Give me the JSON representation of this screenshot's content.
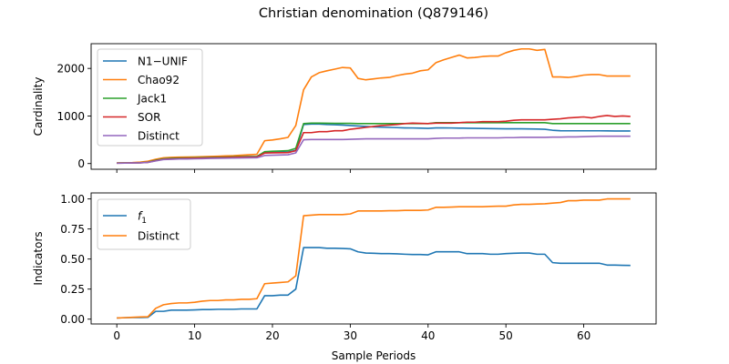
{
  "figure": {
    "title": "Christian denomination (Q879146)"
  },
  "chart_data": [
    {
      "type": "line",
      "title": "Christian denomination (Q879146)",
      "xlabel": "",
      "ylabel": "Cardinality",
      "xlim": [
        -3.3,
        69.3
      ],
      "ylim": [
        -120,
        2520
      ],
      "xticks": [
        0,
        10,
        20,
        30,
        40,
        50,
        60
      ],
      "xtick_labels": [
        "",
        "",
        "",
        "",
        "",
        "",
        ""
      ],
      "yticks": [
        0,
        1000,
        2000
      ],
      "ytick_labels": [
        "0",
        "1000",
        "2000"
      ],
      "grid": false,
      "legend_position": "upper left",
      "x": [
        0,
        1,
        2,
        3,
        4,
        5,
        6,
        7,
        8,
        9,
        10,
        11,
        12,
        13,
        14,
        15,
        16,
        17,
        18,
        19,
        20,
        21,
        22,
        23,
        24,
        25,
        26,
        27,
        28,
        29,
        30,
        31,
        32,
        33,
        34,
        35,
        36,
        37,
        38,
        39,
        40,
        41,
        42,
        43,
        44,
        45,
        46,
        47,
        48,
        49,
        50,
        51,
        52,
        53,
        54,
        55,
        56,
        57,
        58,
        59,
        60,
        61,
        62,
        63,
        64,
        65,
        66
      ],
      "series": [
        {
          "name": "N1−UNIF",
          "color": "#1f77b4",
          "values": [
            10,
            12,
            14,
            18,
            30,
            70,
            100,
            110,
            115,
            118,
            120,
            125,
            130,
            133,
            135,
            140,
            145,
            148,
            150,
            230,
            235,
            238,
            240,
            280,
            820,
            830,
            830,
            820,
            815,
            810,
            800,
            790,
            780,
            770,
            765,
            760,
            755,
            750,
            748,
            745,
            740,
            750,
            750,
            748,
            745,
            743,
            740,
            738,
            735,
            733,
            730,
            730,
            730,
            728,
            725,
            720,
            700,
            690,
            688,
            688,
            688,
            688,
            688,
            687,
            685,
            685,
            685
          ],
          "labels": []
        },
        {
          "name": "Chao92",
          "color": "#ff7f0e",
          "values": [
            15,
            17,
            20,
            30,
            50,
            90,
            120,
            130,
            135,
            138,
            140,
            145,
            150,
            155,
            160,
            165,
            175,
            185,
            195,
            480,
            495,
            520,
            550,
            800,
            1550,
            1820,
            1910,
            1950,
            1985,
            2020,
            2010,
            1790,
            1760,
            1780,
            1800,
            1810,
            1850,
            1880,
            1900,
            1950,
            1970,
            2120,
            2180,
            2230,
            2280,
            2220,
            2230,
            2250,
            2260,
            2260,
            2330,
            2380,
            2410,
            2410,
            2380,
            2400,
            1820,
            1820,
            1810,
            1830,
            1860,
            1870,
            1870,
            1840,
            1840,
            1840,
            1840
          ],
          "labels": []
        },
        {
          "name": "Jack1",
          "color": "#2ca02c",
          "values": [
            10,
            12,
            14,
            18,
            30,
            70,
            100,
            110,
            115,
            118,
            120,
            125,
            130,
            133,
            135,
            140,
            145,
            148,
            150,
            250,
            260,
            265,
            270,
            320,
            840,
            850,
            850,
            848,
            845,
            845,
            845,
            840,
            840,
            840,
            840,
            840,
            840,
            840,
            840,
            840,
            840,
            860,
            860,
            860,
            860,
            860,
            860,
            860,
            860,
            860,
            860,
            860,
            860,
            860,
            860,
            860,
            840,
            840,
            840,
            840,
            840,
            840,
            840,
            840,
            840,
            840,
            840
          ],
          "labels": []
        },
        {
          "name": "SOR",
          "color": "#d62728",
          "values": [
            8,
            10,
            12,
            15,
            25,
            60,
            90,
            100,
            105,
            108,
            110,
            115,
            120,
            123,
            125,
            130,
            135,
            138,
            140,
            220,
            225,
            228,
            230,
            270,
            650,
            650,
            670,
            670,
            690,
            690,
            720,
            740,
            760,
            780,
            800,
            810,
            820,
            840,
            850,
            845,
            840,
            850,
            850,
            850,
            860,
            870,
            870,
            880,
            880,
            880,
            890,
            910,
            920,
            920,
            920,
            920,
            930,
            940,
            960,
            970,
            980,
            960,
            990,
            1010,
            990,
            1000,
            990
          ],
          "labels": []
        },
        {
          "name": "Distinct",
          "color": "#9467bd",
          "values": [
            8,
            10,
            12,
            15,
            25,
            55,
            85,
            90,
            95,
            97,
            100,
            103,
            108,
            110,
            112,
            115,
            118,
            120,
            122,
            170,
            175,
            180,
            185,
            225,
            500,
            505,
            505,
            505,
            505,
            505,
            510,
            515,
            520,
            520,
            520,
            520,
            520,
            520,
            520,
            520,
            520,
            530,
            535,
            535,
            535,
            540,
            540,
            540,
            540,
            540,
            545,
            545,
            550,
            550,
            550,
            550,
            555,
            555,
            560,
            560,
            565,
            570,
            575,
            575,
            575,
            575,
            575
          ],
          "labels": []
        }
      ]
    },
    {
      "type": "line",
      "xlabel": "Sample Periods",
      "ylabel": "Indicators",
      "xlim": [
        -3.3,
        69.3
      ],
      "ylim": [
        -0.04,
        1.05
      ],
      "xticks": [
        0,
        10,
        20,
        30,
        40,
        50,
        60
      ],
      "xtick_labels": [
        "0",
        "10",
        "20",
        "30",
        "40",
        "50",
        "60"
      ],
      "yticks": [
        0.0,
        0.25,
        0.5,
        0.75,
        1.0
      ],
      "ytick_labels": [
        "0.00",
        "0.25",
        "0.50",
        "0.75",
        "1.00"
      ],
      "grid": false,
      "legend_position": "upper left",
      "x": [
        0,
        1,
        2,
        3,
        4,
        5,
        6,
        7,
        8,
        9,
        10,
        11,
        12,
        13,
        14,
        15,
        16,
        17,
        18,
        19,
        20,
        21,
        22,
        23,
        24,
        25,
        26,
        27,
        28,
        29,
        30,
        31,
        32,
        33,
        34,
        35,
        36,
        37,
        38,
        39,
        40,
        41,
        42,
        43,
        44,
        45,
        46,
        47,
        48,
        49,
        50,
        51,
        52,
        53,
        54,
        55,
        56,
        57,
        58,
        59,
        60,
        61,
        62,
        63,
        64,
        65,
        66
      ],
      "series": [
        {
          "name": "f1",
          "legend_base": "f",
          "legend_sub": "1",
          "color": "#1f77b4",
          "values": [
            0.01,
            0.012,
            0.013,
            0.013,
            0.015,
            0.065,
            0.065,
            0.075,
            0.075,
            0.075,
            0.077,
            0.08,
            0.08,
            0.082,
            0.082,
            0.082,
            0.085,
            0.085,
            0.085,
            0.195,
            0.195,
            0.2,
            0.2,
            0.25,
            0.595,
            0.595,
            0.595,
            0.59,
            0.59,
            0.588,
            0.585,
            0.56,
            0.55,
            0.548,
            0.545,
            0.545,
            0.543,
            0.54,
            0.538,
            0.538,
            0.535,
            0.56,
            0.56,
            0.56,
            0.56,
            0.545,
            0.545,
            0.545,
            0.54,
            0.54,
            0.545,
            0.548,
            0.55,
            0.55,
            0.54,
            0.54,
            0.47,
            0.465,
            0.465,
            0.465,
            0.465,
            0.465,
            0.465,
            0.45,
            0.45,
            0.448,
            0.447
          ],
          "labels": []
        },
        {
          "name": "Distinct",
          "color": "#ff7f0e",
          "values": [
            0.01,
            0.012,
            0.015,
            0.018,
            0.02,
            0.09,
            0.12,
            0.13,
            0.135,
            0.135,
            0.14,
            0.15,
            0.155,
            0.155,
            0.16,
            0.16,
            0.165,
            0.165,
            0.17,
            0.295,
            0.3,
            0.305,
            0.31,
            0.36,
            0.86,
            0.865,
            0.87,
            0.87,
            0.87,
            0.87,
            0.875,
            0.9,
            0.9,
            0.9,
            0.9,
            0.902,
            0.902,
            0.905,
            0.905,
            0.905,
            0.908,
            0.93,
            0.93,
            0.932,
            0.935,
            0.935,
            0.935,
            0.935,
            0.938,
            0.94,
            0.94,
            0.95,
            0.955,
            0.955,
            0.958,
            0.96,
            0.965,
            0.97,
            0.985,
            0.985,
            0.99,
            0.99,
            0.99,
            1.0,
            1.0,
            1.0,
            1.0
          ],
          "labels": []
        }
      ]
    }
  ]
}
